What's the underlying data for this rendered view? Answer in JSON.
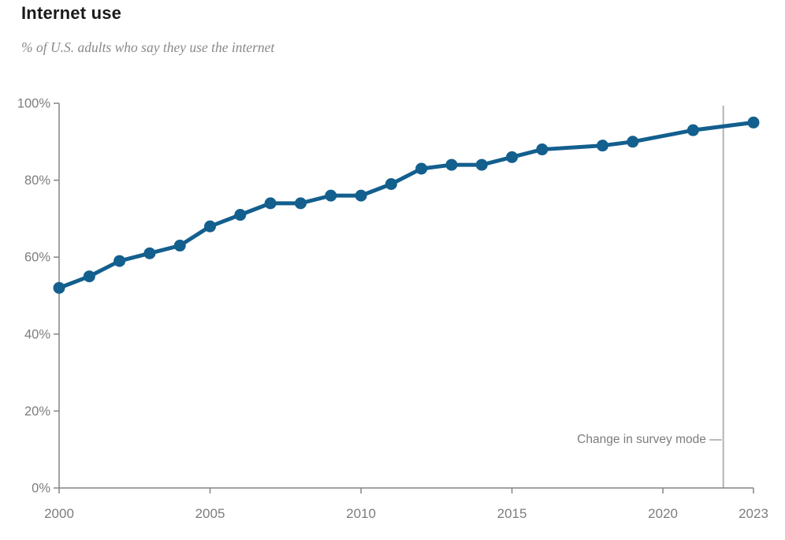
{
  "header": {
    "title": "Internet use",
    "subtitle": "% of U.S. adults who say they use the internet"
  },
  "colors": {
    "line": "#135f8e",
    "point": "#135f8e",
    "axis": "#848484",
    "tick_label": "#7d7d7d",
    "annotation_text": "#7d7d7d",
    "annotation_line": "#b3b3b3",
    "title": "#1a1a1a",
    "subtitle": "#8a8a8a"
  },
  "chart_data": {
    "type": "line",
    "title": "Internet use",
    "subtitle": "% of U.S. adults who say they use the internet",
    "x": [
      2000,
      2001,
      2002,
      2003,
      2004,
      2005,
      2006,
      2007,
      2008,
      2009,
      2010,
      2011,
      2012,
      2013,
      2014,
      2015,
      2016,
      2018,
      2019,
      2021,
      2023
    ],
    "values": [
      52,
      55,
      59,
      61,
      63,
      68,
      71,
      74,
      74,
      76,
      76,
      79,
      83,
      84,
      84,
      86,
      88,
      89,
      90,
      93,
      95
    ],
    "xlabel": "",
    "ylabel": "% of U.S. adults",
    "xlim": [
      2000,
      2023
    ],
    "ylim": [
      0,
      100
    ],
    "grid": false,
    "legend": "none",
    "x_ticks": [
      {
        "value": 2000,
        "label": "2000"
      },
      {
        "value": 2005,
        "label": "2005"
      },
      {
        "value": 2010,
        "label": "2010"
      },
      {
        "value": 2015,
        "label": "2015"
      },
      {
        "value": 2020,
        "label": "2020"
      },
      {
        "value": 2023,
        "label": "2023"
      }
    ],
    "y_ticks": [
      {
        "value": 0,
        "label": "0%"
      },
      {
        "value": 20,
        "label": "20%"
      },
      {
        "value": 40,
        "label": "40%"
      },
      {
        "value": 60,
        "label": "60%"
      },
      {
        "value": 80,
        "label": "80%"
      },
      {
        "value": 100,
        "label": "100%"
      }
    ],
    "annotation": {
      "text": "Change in survey mode —",
      "x_value": 2022
    }
  }
}
